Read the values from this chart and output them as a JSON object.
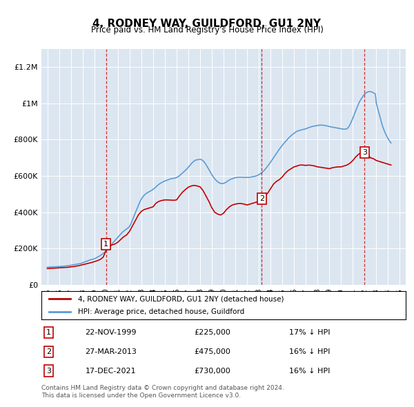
{
  "title": "4, RODNEY WAY, GUILDFORD, GU1 2NY",
  "subtitle": "Price paid vs. HM Land Registry's House Price Index (HPI)",
  "legend_line1": "4, RODNEY WAY, GUILDFORD, GU1 2NY (detached house)",
  "legend_line2": "HPI: Average price, detached house, Guildford",
  "footer1": "Contains HM Land Registry data © Crown copyright and database right 2024.",
  "footer2": "This data is licensed under the Open Government Licence v3.0.",
  "transactions": [
    {
      "num": 1,
      "date": "22-NOV-1999",
      "date_val": 2000.0,
      "price": 225000,
      "label": "17% ↓ HPI"
    },
    {
      "num": 2,
      "date": "27-MAR-2013",
      "date_val": 2013.25,
      "price": 475000,
      "label": "16% ↓ HPI"
    },
    {
      "num": 3,
      "date": "17-DEC-2021",
      "date_val": 2022.0,
      "price": 730000,
      "label": "16% ↓ HPI"
    }
  ],
  "hpi_color": "#5b9bd5",
  "price_color": "#c00000",
  "background_color": "#dce6f1",
  "hpi_data": {
    "years": [
      1995.0,
      1995.083,
      1995.167,
      1995.25,
      1995.333,
      1995.417,
      1995.5,
      1995.583,
      1995.667,
      1995.75,
      1995.833,
      1995.917,
      1996.0,
      1996.083,
      1996.167,
      1996.25,
      1996.333,
      1996.417,
      1996.5,
      1996.583,
      1996.667,
      1996.75,
      1996.833,
      1996.917,
      1997.0,
      1997.083,
      1997.167,
      1997.25,
      1997.333,
      1997.417,
      1997.5,
      1997.583,
      1997.667,
      1997.75,
      1997.833,
      1997.917,
      1998.0,
      1998.083,
      1998.167,
      1998.25,
      1998.333,
      1998.417,
      1998.5,
      1998.583,
      1998.667,
      1998.75,
      1998.833,
      1998.917,
      1999.0,
      1999.083,
      1999.167,
      1999.25,
      1999.333,
      1999.417,
      1999.5,
      1999.583,
      1999.667,
      1999.75,
      1999.833,
      1999.917,
      2000.0,
      2000.083,
      2000.167,
      2000.25,
      2000.333,
      2000.417,
      2000.5,
      2000.583,
      2000.667,
      2000.75,
      2000.833,
      2000.917,
      2001.0,
      2001.083,
      2001.167,
      2001.25,
      2001.333,
      2001.417,
      2001.5,
      2001.583,
      2001.667,
      2001.75,
      2001.833,
      2001.917,
      2002.0,
      2002.083,
      2002.167,
      2002.25,
      2002.333,
      2002.417,
      2002.5,
      2002.583,
      2002.667,
      2002.75,
      2002.833,
      2002.917,
      2003.0,
      2003.083,
      2003.167,
      2003.25,
      2003.333,
      2003.417,
      2003.5,
      2003.583,
      2003.667,
      2003.75,
      2003.833,
      2003.917,
      2004.0,
      2004.083,
      2004.167,
      2004.25,
      2004.333,
      2004.417,
      2004.5,
      2004.583,
      2004.667,
      2004.75,
      2004.833,
      2004.917,
      2005.0,
      2005.083,
      2005.167,
      2005.25,
      2005.333,
      2005.417,
      2005.5,
      2005.583,
      2005.667,
      2005.75,
      2005.833,
      2005.917,
      2006.0,
      2006.083,
      2006.167,
      2006.25,
      2006.333,
      2006.417,
      2006.5,
      2006.583,
      2006.667,
      2006.75,
      2006.833,
      2006.917,
      2007.0,
      2007.083,
      2007.167,
      2007.25,
      2007.333,
      2007.417,
      2007.5,
      2007.583,
      2007.667,
      2007.75,
      2007.833,
      2007.917,
      2008.0,
      2008.083,
      2008.167,
      2008.25,
      2008.333,
      2008.417,
      2008.5,
      2008.583,
      2008.667,
      2008.75,
      2008.833,
      2008.917,
      2009.0,
      2009.083,
      2009.167,
      2009.25,
      2009.333,
      2009.417,
      2009.5,
      2009.583,
      2009.667,
      2009.75,
      2009.833,
      2009.917,
      2010.0,
      2010.083,
      2010.167,
      2010.25,
      2010.333,
      2010.417,
      2010.5,
      2010.583,
      2010.667,
      2010.75,
      2010.833,
      2010.917,
      2011.0,
      2011.083,
      2011.167,
      2011.25,
      2011.333,
      2011.417,
      2011.5,
      2011.583,
      2011.667,
      2011.75,
      2011.833,
      2011.917,
      2012.0,
      2012.083,
      2012.167,
      2012.25,
      2012.333,
      2012.417,
      2012.5,
      2012.583,
      2012.667,
      2012.75,
      2012.833,
      2012.917,
      2013.0,
      2013.083,
      2013.167,
      2013.25,
      2013.333,
      2013.417,
      2013.5,
      2013.583,
      2013.667,
      2013.75,
      2013.833,
      2013.917,
      2014.0,
      2014.083,
      2014.167,
      2014.25,
      2014.333,
      2014.417,
      2014.5,
      2014.583,
      2014.667,
      2014.75,
      2014.833,
      2014.917,
      2015.0,
      2015.083,
      2015.167,
      2015.25,
      2015.333,
      2015.417,
      2015.5,
      2015.583,
      2015.667,
      2015.75,
      2015.833,
      2015.917,
      2016.0,
      2016.083,
      2016.167,
      2016.25,
      2016.333,
      2016.417,
      2016.5,
      2016.583,
      2016.667,
      2016.75,
      2016.833,
      2016.917,
      2017.0,
      2017.083,
      2017.167,
      2017.25,
      2017.333,
      2017.417,
      2017.5,
      2017.583,
      2017.667,
      2017.75,
      2017.833,
      2017.917,
      2018.0,
      2018.083,
      2018.167,
      2018.25,
      2018.333,
      2018.417,
      2018.5,
      2018.583,
      2018.667,
      2018.75,
      2018.833,
      2018.917,
      2019.0,
      2019.083,
      2019.167,
      2019.25,
      2019.333,
      2019.417,
      2019.5,
      2019.583,
      2019.667,
      2019.75,
      2019.833,
      2019.917,
      2020.0,
      2020.083,
      2020.167,
      2020.25,
      2020.333,
      2020.417,
      2020.5,
      2020.583,
      2020.667,
      2020.75,
      2020.833,
      2020.917,
      2021.0,
      2021.083,
      2021.167,
      2021.25,
      2021.333,
      2021.417,
      2021.5,
      2021.583,
      2021.667,
      2021.75,
      2021.833,
      2021.917,
      2022.0,
      2022.083,
      2022.167,
      2022.25,
      2022.333,
      2022.417,
      2022.5,
      2022.583,
      2022.667,
      2022.75,
      2022.833,
      2022.917,
      2023.0,
      2023.083,
      2023.167,
      2023.25,
      2023.333,
      2023.417,
      2023.5,
      2023.583,
      2023.667,
      2023.75,
      2023.833,
      2023.917,
      2024.0,
      2024.083,
      2024.167,
      2024.25
    ],
    "values": [
      97000,
      97500,
      98000,
      98500,
      99000,
      99200,
      99400,
      99600,
      99800,
      100000,
      100200,
      100500,
      101000,
      101500,
      102000,
      102500,
      103000,
      103500,
      104000,
      104500,
      105000,
      105500,
      106000,
      106500,
      108000,
      109000,
      110000,
      111000,
      112000,
      113000,
      114000,
      115000,
      116000,
      117000,
      118000,
      119000,
      122000,
      124000,
      126000,
      128000,
      130000,
      132000,
      134000,
      136000,
      138000,
      140000,
      141000,
      142000,
      144000,
      146000,
      149000,
      152000,
      155000,
      158000,
      161000,
      165000,
      169000,
      173000,
      177000,
      181000,
      187000,
      193000,
      200000,
      206000,
      212000,
      219000,
      226000,
      232000,
      238000,
      244000,
      250000,
      256000,
      262000,
      268000,
      274000,
      280000,
      286000,
      292000,
      296000,
      300000,
      304000,
      308000,
      312000,
      316000,
      322000,
      332000,
      345000,
      358000,
      372000,
      385000,
      398000,
      412000,
      425000,
      438000,
      450000,
      462000,
      472000,
      480000,
      488000,
      494000,
      499000,
      503000,
      507000,
      510000,
      513000,
      516000,
      519000,
      522000,
      526000,
      530000,
      535000,
      540000,
      545000,
      550000,
      554000,
      558000,
      561000,
      564000,
      567000,
      570000,
      572000,
      574000,
      576000,
      578000,
      580000,
      582000,
      584000,
      585000,
      586000,
      587000,
      588000,
      589000,
      591000,
      594000,
      597000,
      601000,
      606000,
      611000,
      616000,
      621000,
      626000,
      631000,
      636000,
      641000,
      648000,
      654000,
      660000,
      667000,
      673000,
      678000,
      682000,
      686000,
      688000,
      689000,
      690000,
      691000,
      692000,
      690000,
      688000,
      684000,
      678000,
      671000,
      663000,
      654000,
      645000,
      635000,
      626000,
      616000,
      607000,
      599000,
      591000,
      584000,
      578000,
      573000,
      568000,
      564000,
      561000,
      559000,
      558000,
      558000,
      559000,
      561000,
      564000,
      567000,
      571000,
      575000,
      578000,
      581000,
      583000,
      585000,
      587000,
      589000,
      590000,
      591000,
      592000,
      593000,
      593000,
      593000,
      593000,
      593000,
      592000,
      592000,
      592000,
      592000,
      592000,
      592000,
      592000,
      593000,
      594000,
      595000,
      596000,
      597000,
      598000,
      600000,
      602000,
      604000,
      607000,
      610000,
      614000,
      618000,
      623000,
      628000,
      634000,
      640000,
      647000,
      654000,
      661000,
      668000,
      676000,
      684000,
      692000,
      700000,
      708000,
      716000,
      724000,
      732000,
      740000,
      748000,
      755000,
      762000,
      769000,
      776000,
      782000,
      788000,
      794000,
      800000,
      806000,
      812000,
      817000,
      822000,
      827000,
      831000,
      835000,
      839000,
      843000,
      846000,
      848000,
      850000,
      851000,
      853000,
      854000,
      856000,
      857000,
      858000,
      860000,
      862000,
      864000,
      866000,
      868000,
      870000,
      872000,
      873000,
      874000,
      875000,
      876000,
      877000,
      878000,
      879000,
      880000,
      880000,
      880000,
      880000,
      879000,
      878000,
      877000,
      876000,
      875000,
      874000,
      872000,
      871000,
      870000,
      869000,
      868000,
      867000,
      866000,
      865000,
      864000,
      863000,
      862000,
      861000,
      860000,
      859000,
      858000,
      858000,
      858000,
      858000,
      860000,
      865000,
      872000,
      882000,
      893000,
      905000,
      918000,
      932000,
      946000,
      960000,
      973000,
      986000,
      999000,
      1010000,
      1020000,
      1028000,
      1036000,
      1044000,
      1050000,
      1055000,
      1059000,
      1062000,
      1064000,
      1065000,
      1064000,
      1063000,
      1061000,
      1058000,
      1055000,
      1051000,
      1000000,
      980000,
      960000,
      940000,
      920000,
      900000,
      880000,
      865000,
      850000,
      838000,
      826000,
      815000,
      805000,
      796000,
      788000,
      782000
    ]
  },
  "price_data": {
    "years": [
      1995.0,
      1995.25,
      1995.5,
      1995.75,
      1996.0,
      1996.25,
      1996.5,
      1996.75,
      1997.0,
      1997.25,
      1997.5,
      1997.75,
      1998.0,
      1998.25,
      1998.5,
      1998.75,
      1999.0,
      1999.25,
      1999.5,
      1999.75,
      2000.0,
      2000.25,
      2000.5,
      2000.75,
      2001.0,
      2001.25,
      2001.5,
      2001.75,
      2002.0,
      2002.25,
      2002.5,
      2002.75,
      2003.0,
      2003.25,
      2003.5,
      2003.75,
      2004.0,
      2004.25,
      2004.5,
      2004.75,
      2005.0,
      2005.25,
      2005.5,
      2005.75,
      2006.0,
      2006.25,
      2006.5,
      2006.75,
      2007.0,
      2007.25,
      2007.5,
      2007.75,
      2008.0,
      2008.25,
      2008.5,
      2008.75,
      2009.0,
      2009.25,
      2009.5,
      2009.75,
      2010.0,
      2010.25,
      2010.5,
      2010.75,
      2011.0,
      2011.25,
      2011.5,
      2011.75,
      2012.0,
      2012.25,
      2012.5,
      2012.75,
      2013.0,
      2013.25,
      2013.5,
      2013.75,
      2014.0,
      2014.25,
      2014.5,
      2014.75,
      2015.0,
      2015.25,
      2015.5,
      2015.75,
      2016.0,
      2016.25,
      2016.5,
      2016.75,
      2017.0,
      2017.25,
      2017.5,
      2017.75,
      2018.0,
      2018.25,
      2018.5,
      2018.75,
      2019.0,
      2019.25,
      2019.5,
      2019.75,
      2020.0,
      2020.25,
      2020.5,
      2020.75,
      2021.0,
      2021.25,
      2021.5,
      2021.75,
      2022.0,
      2022.25,
      2022.5,
      2022.75,
      2023.0,
      2023.25,
      2023.5,
      2023.75,
      2024.0,
      2024.25
    ],
    "values": [
      90000,
      91000,
      92000,
      93000,
      94000,
      95000,
      96000,
      97000,
      99000,
      101000,
      104000,
      107000,
      111000,
      115000,
      119000,
      123000,
      128000,
      133000,
      140000,
      152000,
      190000,
      210000,
      220000,
      225000,
      235000,
      250000,
      265000,
      275000,
      295000,
      325000,
      355000,
      385000,
      405000,
      415000,
      420000,
      425000,
      430000,
      450000,
      460000,
      465000,
      468000,
      468000,
      467000,
      466000,
      468000,
      490000,
      510000,
      525000,
      538000,
      545000,
      548000,
      545000,
      540000,
      520000,
      490000,
      460000,
      425000,
      400000,
      390000,
      385000,
      395000,
      415000,
      430000,
      440000,
      445000,
      448000,
      448000,
      445000,
      440000,
      445000,
      450000,
      455000,
      460000,
      475000,
      490000,
      505000,
      530000,
      555000,
      570000,
      580000,
      595000,
      615000,
      630000,
      640000,
      650000,
      655000,
      660000,
      660000,
      658000,
      660000,
      658000,
      655000,
      650000,
      648000,
      645000,
      643000,
      640000,
      645000,
      648000,
      650000,
      650000,
      655000,
      660000,
      670000,
      685000,
      705000,
      720000,
      730000,
      735000,
      720000,
      700000,
      695000,
      685000,
      680000,
      675000,
      670000,
      665000,
      660000
    ]
  },
  "ylim": [
    0,
    1300000
  ],
  "xlim": [
    1994.5,
    2025.5
  ],
  "yticks": [
    0,
    200000,
    400000,
    600000,
    800000,
    1000000,
    1200000
  ],
  "ytick_labels": [
    "£0",
    "£200K",
    "£400K",
    "£600K",
    "£800K",
    "£1M",
    "£1.2M"
  ],
  "xticks": [
    1995,
    1996,
    1997,
    1998,
    1999,
    2000,
    2001,
    2002,
    2003,
    2004,
    2005,
    2006,
    2007,
    2008,
    2009,
    2010,
    2011,
    2012,
    2013,
    2014,
    2015,
    2016,
    2017,
    2018,
    2019,
    2020,
    2021,
    2022,
    2023,
    2024,
    2025
  ]
}
